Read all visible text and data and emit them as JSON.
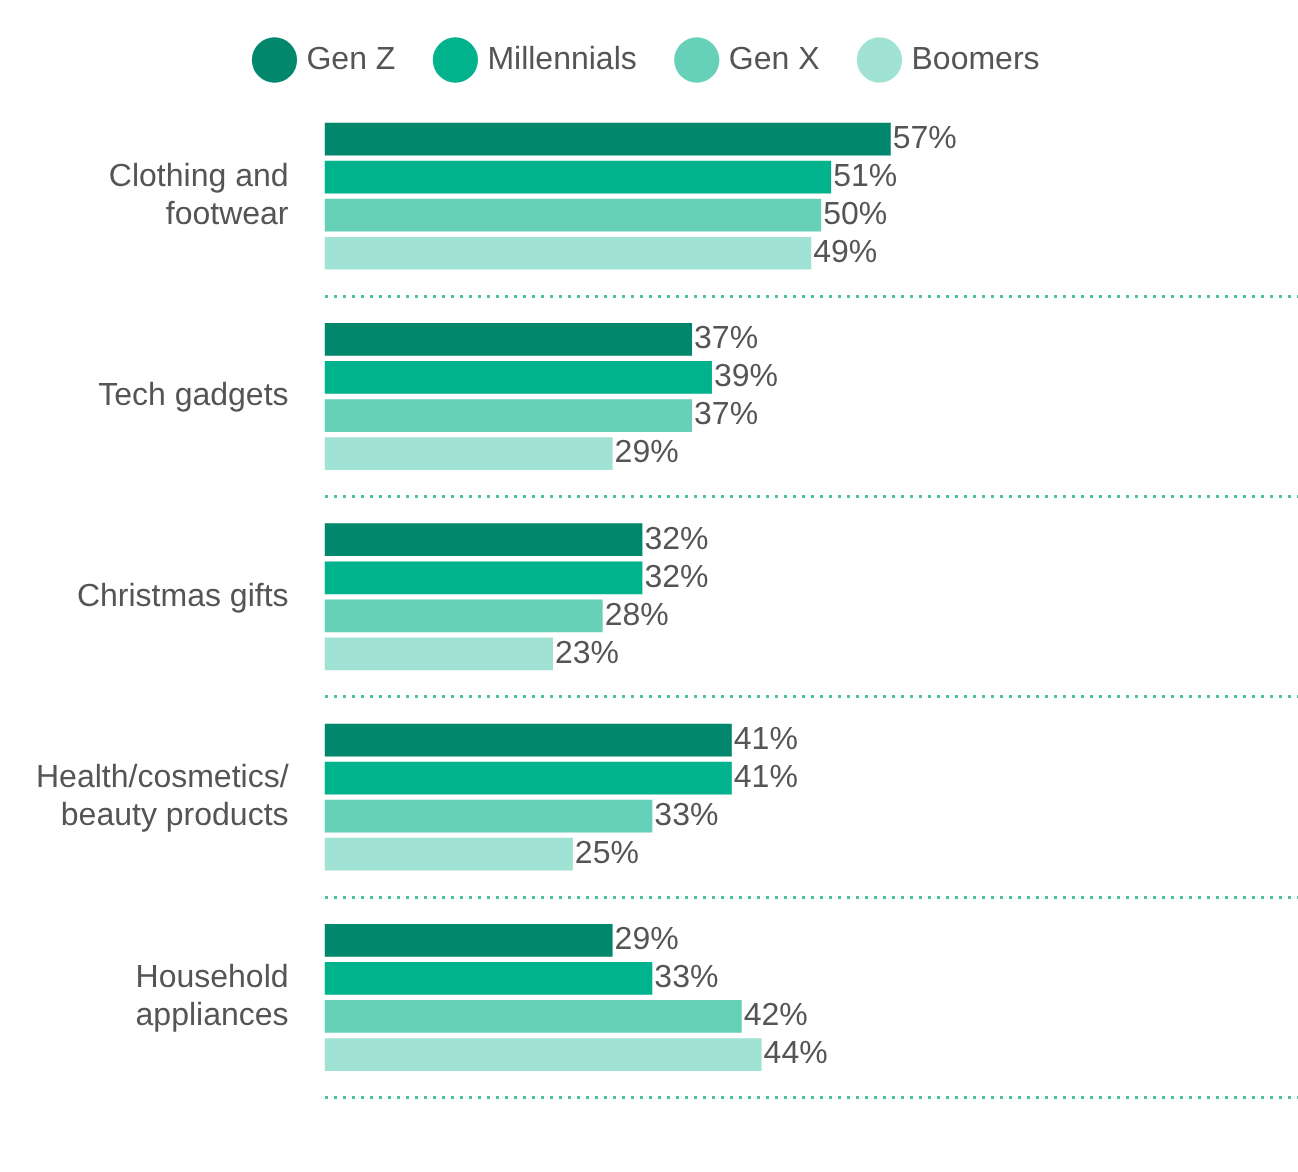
{
  "chart_data": {
    "type": "bar",
    "orientation": "horizontal",
    "categories": [
      "Clothing and footwear",
      "Tech gadgets",
      "Christmas gifts",
      "Health/cosmetics/ beauty products",
      "Household appliances"
    ],
    "series": [
      {
        "name": "Gen Z",
        "color": "#00876c",
        "values": [
          57,
          37,
          32,
          41,
          29
        ],
        "value_labels": [
          "57%",
          "37%",
          "32%",
          "41%",
          "29%"
        ]
      },
      {
        "name": "Millennials",
        "color": "#00b38c",
        "values": [
          51,
          39,
          32,
          41,
          33
        ],
        "value_labels": [
          "51%",
          "39%",
          "32%",
          "41%",
          "33%"
        ]
      },
      {
        "name": "Gen X",
        "color": "#66d1b8",
        "values": [
          50,
          37,
          28,
          33,
          42
        ],
        "value_labels": [
          "50%",
          "37%",
          "28%",
          "33%",
          "42%"
        ]
      },
      {
        "name": "Boomers",
        "color": "#a0e2d3",
        "values": [
          49,
          29,
          23,
          25,
          44
        ],
        "value_labels": [
          "49%",
          "29%",
          "23%",
          "25%",
          "44%"
        ]
      }
    ],
    "xlim": [
      0,
      98
    ],
    "tick_labels": "y",
    "grid": "y",
    "legend": "top"
  }
}
